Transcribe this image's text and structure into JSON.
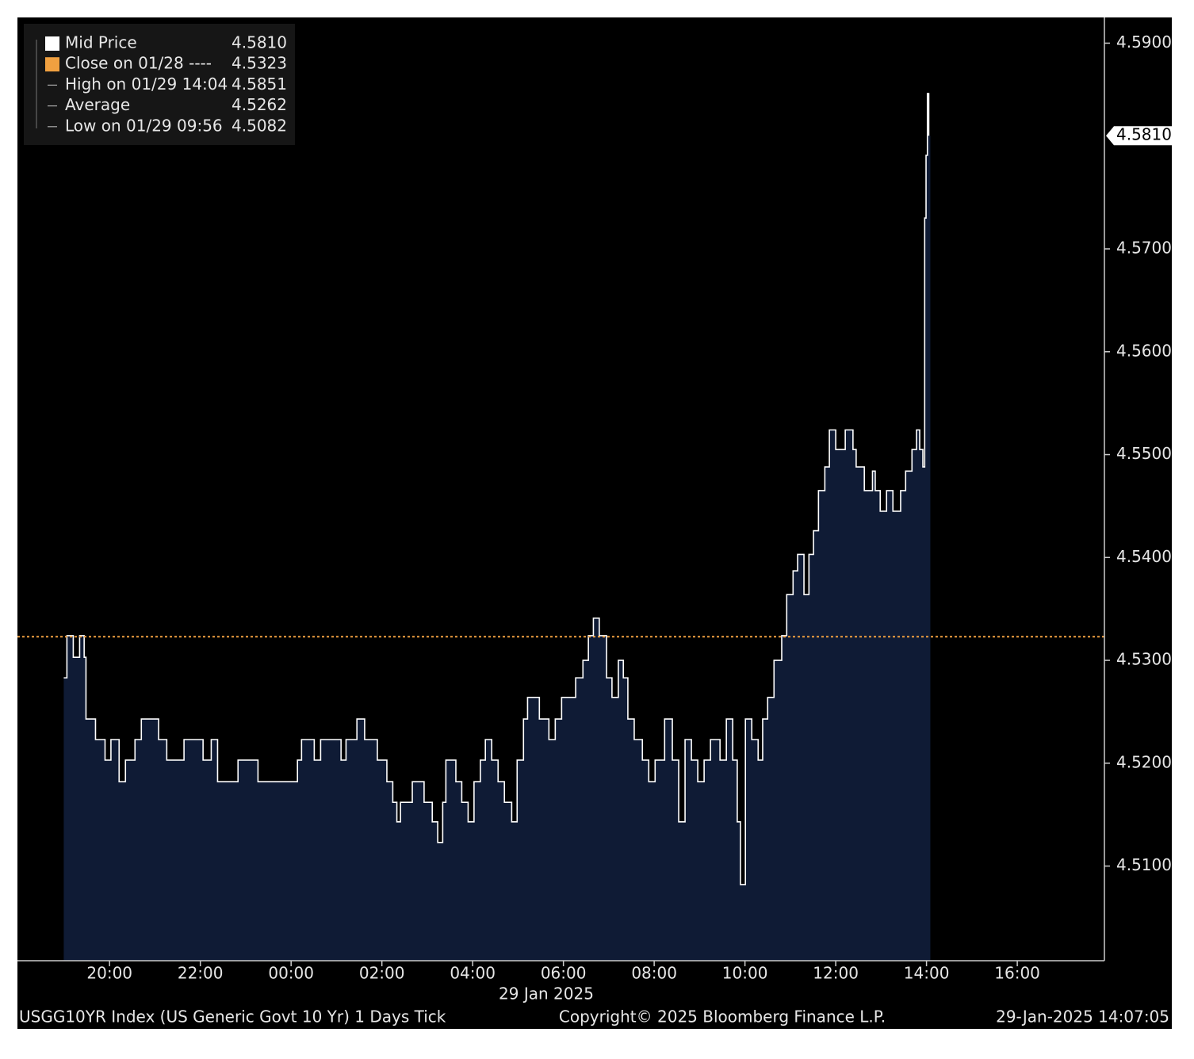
{
  "chart_data": {
    "type": "step-area",
    "x_sublabel": "29 Jan 2025",
    "footer_left": "USGG10YR Index (US Generic Govt 10 Yr) 1 Days  Tick",
    "footer_center": "Copyright© 2025 Bloomberg Finance L.P.",
    "footer_right": "29-Jan-2025 14:07:05",
    "xlim": [
      -6.03,
      17.92
    ],
    "xticks": [
      {
        "value": -4,
        "label": "20:00"
      },
      {
        "value": -2,
        "label": "22:00"
      },
      {
        "value": 0,
        "label": "00:00"
      },
      {
        "value": 2,
        "label": "02:00"
      },
      {
        "value": 4,
        "label": "04:00"
      },
      {
        "value": 6,
        "label": "06:00"
      },
      {
        "value": 8,
        "label": "08:00"
      },
      {
        "value": 10,
        "label": "10:00"
      },
      {
        "value": 12,
        "label": "12:00"
      },
      {
        "value": 14,
        "label": "14:00"
      },
      {
        "value": 16,
        "label": "16:00"
      }
    ],
    "ylim": [
      4.5008,
      4.5925
    ],
    "yticks": [
      {
        "value": 4.51,
        "label": "4.5100"
      },
      {
        "value": 4.52,
        "label": "4.5200"
      },
      {
        "value": 4.53,
        "label": "4.5300"
      },
      {
        "value": 4.54,
        "label": "4.5400"
      },
      {
        "value": 4.55,
        "label": "4.5500"
      },
      {
        "value": 4.56,
        "label": "4.5600"
      },
      {
        "value": 4.57,
        "label": "4.5700"
      },
      {
        "value": 4.59,
        "label": "4.5900"
      }
    ],
    "legend": [
      {
        "name": "Mid Price",
        "value": 4.581,
        "value_label": "4.5810",
        "color": "#ffffff"
      },
      {
        "name": "Close on 01/28 ----",
        "value": 4.5323,
        "value_label": "4.5323",
        "color": "#f0a040"
      },
      {
        "name": "High on 01/29 14:04",
        "value": 4.5851,
        "value_label": "4.5851"
      },
      {
        "name": "Average",
        "value": 4.5262,
        "value_label": "4.5262"
      },
      {
        "name": "Low on 01/29 09:56",
        "value": 4.5082,
        "value_label": "4.5082"
      }
    ],
    "fill_color": "#0f1b35",
    "x": [
      -5.01,
      -4.94,
      -4.8,
      -4.66,
      -4.56,
      -4.52,
      -4.31,
      -4.1,
      -3.97,
      -3.79,
      -3.65,
      -3.44,
      -3.3,
      -2.92,
      -2.74,
      -2.36,
      -1.94,
      -1.76,
      -1.62,
      -1.17,
      -0.73,
      0.02,
      0.14,
      0.23,
      0.51,
      0.65,
      1.1,
      1.21,
      1.45,
      1.62,
      1.9,
      2.11,
      2.24,
      2.33,
      2.41,
      2.67,
      2.93,
      3.11,
      3.23,
      3.34,
      3.41,
      3.63,
      3.76,
      3.9,
      4.03,
      4.17,
      4.28,
      4.42,
      4.56,
      4.7,
      4.86,
      4.98,
      5.12,
      5.21,
      5.47,
      5.68,
      5.82,
      5.96,
      6.27,
      6.43,
      6.55,
      6.66,
      6.79,
      6.95,
      7.07,
      7.21,
      7.32,
      7.42,
      7.56,
      7.74,
      7.88,
      8.02,
      8.23,
      8.4,
      8.54,
      8.68,
      8.82,
      8.96,
      9.1,
      9.24,
      9.45,
      9.59,
      9.73,
      9.83,
      9.9,
      10.01,
      10.15,
      10.29,
      10.39,
      10.5,
      10.64,
      10.81,
      10.92,
      11.06,
      11.16,
      11.3,
      11.41,
      11.51,
      11.62,
      11.76,
      11.86,
      12.0,
      12.21,
      12.38,
      12.45,
      12.63,
      12.81,
      12.87,
      12.98,
      13.12,
      13.26,
      13.43,
      13.54,
      13.68,
      13.78,
      13.85,
      13.92,
      13.96,
      13.99,
      14.02,
      14.05
    ],
    "series": [
      {
        "name": "Mid Price",
        "color": "#ffffff",
        "values": [
          4.5283,
          4.5324,
          4.5303,
          4.5324,
          4.5303,
          4.5243,
          4.5223,
          4.5203,
          4.5223,
          4.5182,
          4.5203,
          4.5223,
          4.5243,
          4.5223,
          4.5203,
          4.5223,
          4.5203,
          4.5223,
          4.5182,
          4.5203,
          4.5182,
          4.5182,
          4.5203,
          4.5223,
          4.5203,
          4.5223,
          4.5203,
          4.5223,
          4.5243,
          4.5223,
          4.5203,
          4.5182,
          4.5162,
          4.5143,
          4.5162,
          4.5182,
          4.5162,
          4.5143,
          4.5123,
          4.5162,
          4.5203,
          4.5182,
          4.5162,
          4.5143,
          4.5182,
          4.5203,
          4.5223,
          4.5203,
          4.5182,
          4.5162,
          4.5143,
          4.5203,
          4.5243,
          4.5264,
          4.5243,
          4.5223,
          4.5243,
          4.5264,
          4.5283,
          4.53,
          4.5324,
          4.5341,
          4.5324,
          4.5283,
          4.5264,
          4.53,
          4.5283,
          4.5243,
          4.5223,
          4.5203,
          4.5182,
          4.5203,
          4.5243,
          4.5203,
          4.5143,
          4.5223,
          4.5203,
          4.5182,
          4.5203,
          4.5223,
          4.5203,
          4.5243,
          4.5203,
          4.5143,
          4.5082,
          4.5243,
          4.5223,
          4.5203,
          4.5243,
          4.5264,
          4.53,
          4.5324,
          4.5364,
          4.5387,
          4.5403,
          4.5364,
          4.5403,
          4.5426,
          4.5465,
          4.5488,
          4.5524,
          4.5505,
          4.5524,
          4.5505,
          4.5488,
          4.5465,
          4.5484,
          4.5465,
          4.5445,
          4.5465,
          4.5445,
          4.5465,
          4.5484,
          4.5505,
          4.5524,
          4.5505,
          4.5488,
          4.573,
          4.5791,
          4.5851,
          4.581
        ]
      }
    ]
  }
}
